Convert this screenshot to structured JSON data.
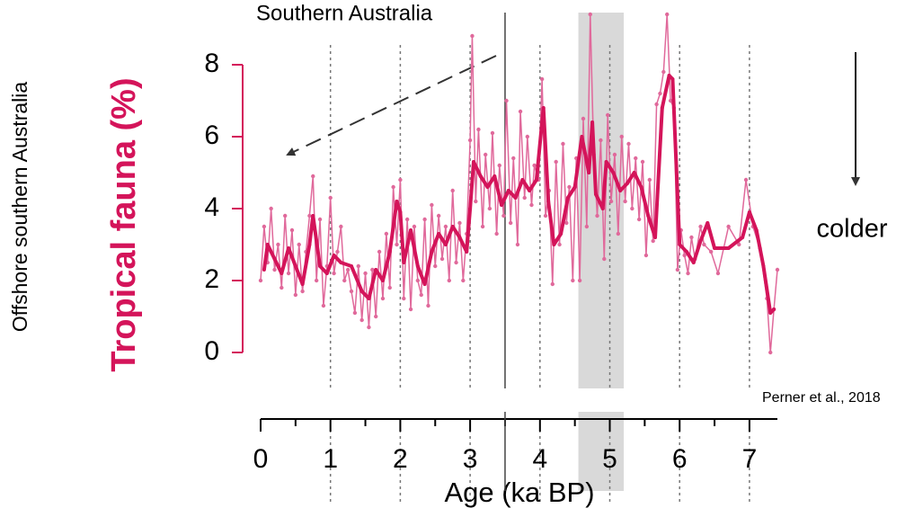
{
  "chart_data": {
    "type": "line",
    "title": "Southern Australia",
    "site_label": "Offshore southern Australia",
    "y_label": "Tropical fauna (%)",
    "x_label": "Age (ka BP)",
    "annotation": "colder",
    "source": "Perner et al., 2018",
    "xlim": [
      0,
      7.4
    ],
    "ylim": [
      -0.5,
      9.4
    ],
    "xticks": [
      0,
      1,
      2,
      3,
      4,
      5,
      6,
      7
    ],
    "xminorticks": [
      0.5,
      1.5,
      2.5,
      3.5,
      4.5,
      5.5,
      6.5
    ],
    "yticks": [
      0,
      2,
      4,
      6,
      8
    ],
    "grid": true,
    "reference_line": 3.5,
    "shaded_band": [
      4.55,
      5.2
    ],
    "axis_color": "#d4145a",
    "series": [
      {
        "name": "raw",
        "color": "#e0699b",
        "x": [
          0.0,
          0.05,
          0.1,
          0.15,
          0.2,
          0.25,
          0.3,
          0.35,
          0.4,
          0.45,
          0.5,
          0.55,
          0.6,
          0.65,
          0.7,
          0.75,
          0.8,
          0.85,
          0.9,
          0.95,
          1.0,
          1.05,
          1.1,
          1.15,
          1.2,
          1.25,
          1.3,
          1.35,
          1.4,
          1.45,
          1.5,
          1.55,
          1.6,
          1.65,
          1.7,
          1.75,
          1.8,
          1.85,
          1.9,
          1.95,
          2.0,
          2.05,
          2.1,
          2.15,
          2.2,
          2.25,
          2.3,
          2.35,
          2.4,
          2.45,
          2.5,
          2.55,
          2.6,
          2.65,
          2.7,
          2.75,
          2.8,
          2.85,
          2.9,
          2.95,
          3.0,
          3.03,
          3.08,
          3.12,
          3.18,
          3.22,
          3.28,
          3.32,
          3.38,
          3.42,
          3.48,
          3.52,
          3.58,
          3.62,
          3.68,
          3.72,
          3.78,
          3.82,
          3.88,
          3.92,
          3.98,
          4.03,
          4.08,
          4.13,
          4.18,
          4.23,
          4.28,
          4.33,
          4.38,
          4.42,
          4.47,
          4.52,
          4.57,
          4.62,
          4.67,
          4.72,
          4.77,
          4.82,
          4.87,
          4.92,
          4.97,
          5.02,
          5.07,
          5.12,
          5.17,
          5.22,
          5.27,
          5.32,
          5.37,
          5.42,
          5.47,
          5.52,
          5.57,
          5.62,
          5.67,
          5.72,
          5.77,
          5.82,
          5.87,
          5.92,
          5.97,
          6.02,
          6.07,
          6.12,
          6.17,
          6.22,
          6.3,
          6.35,
          6.45,
          6.55,
          6.7,
          6.85,
          6.95,
          7.05,
          7.15,
          7.25,
          7.3,
          7.35,
          7.4
        ],
        "values": [
          2.0,
          3.5,
          2.5,
          4.0,
          2.3,
          3.0,
          1.8,
          3.8,
          2.2,
          3.4,
          1.6,
          3.0,
          1.7,
          2.8,
          3.8,
          4.9,
          2.0,
          3.7,
          1.3,
          2.4,
          4.3,
          2.2,
          2.8,
          3.5,
          2.0,
          2.3,
          1.7,
          1.1,
          2.4,
          0.9,
          2.2,
          0.7,
          2.3,
          1.0,
          2.8,
          1.5,
          3.3,
          1.8,
          4.6,
          3.0,
          4.8,
          1.5,
          3.7,
          1.2,
          3.5,
          2.0,
          1.6,
          3.7,
          1.3,
          4.1,
          2.4,
          3.8,
          2.6,
          3.5,
          2.0,
          4.5,
          2.5,
          3.6,
          2.0,
          3.3,
          5.9,
          8.8,
          4.2,
          6.2,
          3.5,
          5.5,
          4.0,
          6.1,
          3.3,
          5.2,
          3.8,
          7.0,
          3.6,
          5.4,
          3.0,
          6.7,
          4.3,
          6.0,
          4.1,
          5.2,
          4.8,
          7.6,
          3.8,
          4.5,
          1.9,
          5.3,
          3.0,
          5.8,
          3.6,
          4.6,
          2.0,
          5.4,
          2.0,
          6.5,
          3.5,
          9.4,
          5.5,
          3.8,
          5.9,
          2.6,
          6.6,
          4.2,
          5.5,
          3.3,
          6.0,
          4.2,
          5.8,
          4.0,
          5.4,
          3.7,
          5.3,
          2.7,
          4.8,
          3.1,
          6.9,
          7.2,
          7.8,
          9.4,
          7.0,
          6.8,
          2.3,
          3.4,
          2.7,
          2.2,
          3.2,
          2.6,
          3.5,
          3.0,
          2.8,
          2.2,
          3.5,
          3.0,
          4.8,
          3.5,
          2.9,
          1.5,
          0.0,
          1.2,
          2.3
        ]
      },
      {
        "name": "smoothed",
        "color": "#d4145a",
        "x": [
          0.05,
          0.1,
          0.2,
          0.3,
          0.4,
          0.5,
          0.6,
          0.7,
          0.75,
          0.85,
          0.95,
          1.05,
          1.15,
          1.3,
          1.45,
          1.55,
          1.65,
          1.75,
          1.85,
          1.95,
          2.0,
          2.05,
          2.15,
          2.25,
          2.35,
          2.45,
          2.55,
          2.65,
          2.75,
          2.85,
          2.95,
          3.0,
          3.05,
          3.15,
          3.25,
          3.35,
          3.45,
          3.55,
          3.65,
          3.75,
          3.85,
          3.95,
          4.05,
          4.12,
          4.2,
          4.3,
          4.4,
          4.5,
          4.6,
          4.7,
          4.75,
          4.8,
          4.9,
          4.95,
          5.05,
          5.15,
          5.25,
          5.35,
          5.45,
          5.55,
          5.65,
          5.75,
          5.85,
          5.9,
          6.0,
          6.1,
          6.2,
          6.3,
          6.4,
          6.5,
          6.7,
          6.9,
          7.0,
          7.1,
          7.2,
          7.3,
          7.35
        ],
        "values": [
          2.3,
          3.0,
          2.6,
          2.2,
          2.9,
          2.4,
          1.9,
          3.0,
          3.8,
          2.4,
          2.2,
          2.7,
          2.5,
          2.4,
          1.7,
          1.5,
          2.3,
          2.0,
          2.8,
          4.2,
          3.9,
          2.5,
          3.4,
          2.4,
          1.9,
          2.8,
          3.3,
          3.0,
          3.5,
          3.2,
          2.8,
          4.0,
          5.3,
          4.9,
          4.6,
          4.9,
          4.1,
          4.5,
          4.3,
          4.8,
          4.5,
          4.8,
          6.8,
          4.2,
          3.0,
          3.3,
          4.3,
          4.6,
          6.0,
          5.0,
          6.4,
          4.4,
          4.0,
          5.3,
          5.0,
          4.5,
          4.7,
          5.0,
          4.6,
          3.8,
          3.2,
          6.8,
          7.7,
          7.6,
          3.0,
          2.8,
          2.5,
          3.1,
          3.6,
          2.9,
          2.9,
          3.2,
          3.9,
          3.4,
          2.4,
          1.1,
          1.2
        ]
      }
    ]
  }
}
